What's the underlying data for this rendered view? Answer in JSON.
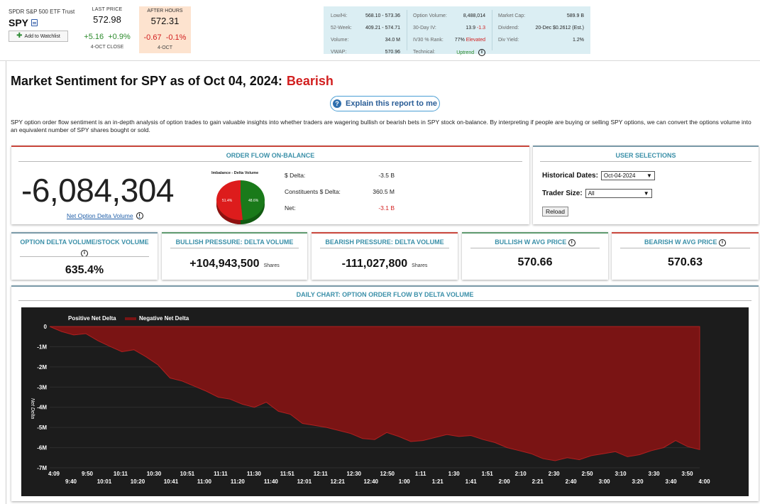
{
  "quote": {
    "fund_name": "SPDR S&P 500 ETF Trust",
    "ticker": "SPY",
    "watchlist_label": "Add to Watchlist",
    "last_label": "LAST PRICE",
    "last_price": "572.98",
    "last_change": "+5.16",
    "last_change_pct": "+0.9%",
    "last_sub": "4-OCT CLOSE",
    "ah_label": "AFTER HOURS",
    "ah_price": "572.31",
    "ah_change": "-0.67",
    "ah_change_pct": "-0.1%",
    "ah_sub": "4-OCT"
  },
  "stats": {
    "col1": [
      {
        "k": "Low/Hi:",
        "v": "568.10 - 573.36"
      },
      {
        "k": "52-Week:",
        "v": "409.21 - 574.71"
      },
      {
        "k": "Volume:",
        "v": "34.0 M"
      },
      {
        "k": "VWAP:",
        "v": "570.96"
      }
    ],
    "col2": [
      {
        "k": "Option Volume:",
        "v": "8,488,014"
      },
      {
        "k": "30-Day IV:",
        "v": "13.9",
        "v2": "-1.3"
      },
      {
        "k": "IV30 % Rank:",
        "v": "77%",
        "v2": "Elevated"
      },
      {
        "k": "Technical:",
        "v": "Uptrend"
      }
    ],
    "col3": [
      {
        "k": "Market Cap:",
        "v": "589.9 B"
      },
      {
        "k": "Dividend:",
        "v": "20-Dec $0.2612 (Est.)"
      },
      {
        "k": "Div Yield:",
        "v": "1.2%"
      }
    ]
  },
  "headline": {
    "prefix": "Market Sentiment for SPY as of Oct 04, 2024:",
    "sentiment": "Bearish"
  },
  "explain_label": "Explain this report to me",
  "description": "SPY option order flow sentiment is an in-depth analysis of option trades to gain valuable insights into whether traders are wagering bullish or bearish bets in SPY stock on-balance. By interpreting if people are buying or selling SPY options, we can convert the options volume into an equivalent number of SPY shares bought or sold.",
  "order_flow": {
    "title": "ORDER FLOW ON-BALANCE",
    "big_number": "-6,084,304",
    "big_label": "Net Option Delta Volume",
    "pie_title": "Imbalance - Delta Volume",
    "pie_left_label": "51.4%",
    "pie_right_label": "48.6%",
    "pie_red_pct": 51.4,
    "pie_green_pct": 48.6,
    "rows": [
      {
        "k": "$ Delta:",
        "v": "-3.5 B",
        "red": false
      },
      {
        "k": "Constituents $ Delta:",
        "v": "360.5 M",
        "red": false
      },
      {
        "k": "Net:",
        "v": "-3.1 B",
        "red": true
      }
    ]
  },
  "user_selections": {
    "title": "USER SELECTIONS",
    "hist_label": "Historical Dates:",
    "hist_value": "Oct-04-2024",
    "trader_label": "Trader Size:",
    "trader_value": "All",
    "reload_label": "Reload"
  },
  "metrics": [
    {
      "title": "OPTION DELTA VOLUME/STOCK VOLUME",
      "value": "635.4%",
      "shares": ""
    },
    {
      "title": "BULLISH PRESSURE: DELTA VOLUME",
      "value": "+104,943,500",
      "shares": "Shares"
    },
    {
      "title": "BEARISH PRESSURE: DELTA VOLUME",
      "value": "-111,027,800",
      "shares": "Shares"
    },
    {
      "title": "BULLISH W AVG PRICE",
      "value": "570.66",
      "shares": ""
    },
    {
      "title": "BEARISH W AVG PRICE",
      "value": "570.63",
      "shares": ""
    }
  ],
  "colors": {
    "red": "#d21f1f",
    "green": "#2b8a2b",
    "chart_bg": "#1c1c1c",
    "area_fill": "#7a1414",
    "area_line": "#b02020",
    "accent": "#3a8fa8"
  },
  "chart_data": {
    "type": "area",
    "title": "DAILY CHART: OPTION ORDER FLOW BY DELTA VOLUME",
    "ylabel": "Net Delta",
    "legend": [
      "Positive Net Delta",
      "Negative Net Delta"
    ],
    "ylim": [
      -7000000,
      0
    ],
    "yticks": [
      "0",
      "-1M",
      "-2M",
      "-3M",
      "-4M",
      "-5M",
      "-6M",
      "-7M"
    ],
    "xticks_top": [
      "4:09",
      "9:50",
      "10:11",
      "10:30",
      "10:51",
      "11:11",
      "11:30",
      "11:51",
      "12:11",
      "12:30",
      "12:50",
      "1:11",
      "1:30",
      "1:51",
      "2:10",
      "2:30",
      "2:50",
      "3:10",
      "3:30",
      "3:50"
    ],
    "xticks_bottom": [
      "9:40",
      "10:01",
      "10:20",
      "10:41",
      "11:00",
      "11:20",
      "11:40",
      "12:01",
      "12:21",
      "12:40",
      "1:00",
      "1:21",
      "1:41",
      "2:00",
      "2:21",
      "2:40",
      "3:00",
      "3:20",
      "3:40",
      "4:00"
    ],
    "values": [
      0,
      -250000,
      -420000,
      -350000,
      -700000,
      -980000,
      -1250000,
      -1150000,
      -1500000,
      -1900000,
      -2550000,
      -2700000,
      -2950000,
      -3200000,
      -3500000,
      -3600000,
      -3850000,
      -4000000,
      -3750000,
      -4200000,
      -4350000,
      -4800000,
      -4900000,
      -5000000,
      -5150000,
      -5300000,
      -5550000,
      -5600000,
      -5250000,
      -5450000,
      -5700000,
      -5650000,
      -5500000,
      -5350000,
      -5450000,
      -5400000,
      -5600000,
      -5750000,
      -6000000,
      -6150000,
      -6300000,
      -6550000,
      -6650000,
      -6500000,
      -6600000,
      -6400000,
      -6300000,
      -6200000,
      -6450000,
      -6350000,
      -6150000,
      -6000000,
      -5650000,
      -5950000,
      -6100000
    ]
  }
}
